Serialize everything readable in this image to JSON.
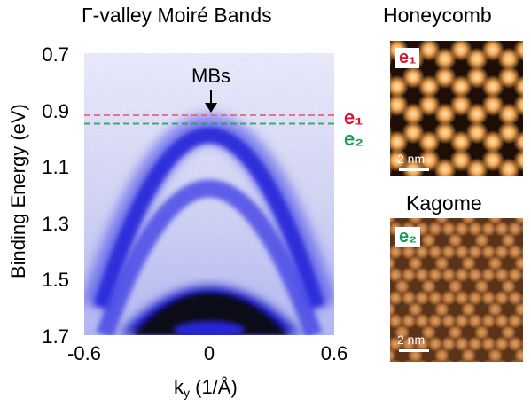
{
  "figure": {
    "title": "Γ-valley Moiré Bands",
    "honeycomb_title": "Honeycomb",
    "kagome_title": "Kagome",
    "annotation": "MBs",
    "xlabel_prefix": "k",
    "xlabel_sub": "y",
    "xlabel_suffix": " (1/Å)",
    "ylabel": "Binding Energy (eV)",
    "e1_label": "e₁",
    "e2_label": "e₂",
    "scale_label": "2 nm"
  },
  "chart_data": {
    "type": "heatmap",
    "title": "Γ-valley Moiré Bands",
    "xlabel": "ky (1/Å)",
    "ylabel": "Binding Energy (eV)",
    "xlim": [
      -0.6,
      0.6
    ],
    "ylim": [
      0.7,
      1.7
    ],
    "y_inverted": true,
    "x_ticks": [
      "-0.6",
      "0",
      "0.6"
    ],
    "y_ticks": [
      "0.7",
      "0.9",
      "1.1",
      "1.3",
      "1.5",
      "1.7"
    ],
    "x_tick_values": [
      -0.6,
      0,
      0.6
    ],
    "y_tick_values": [
      0.7,
      0.9,
      1.1,
      1.3,
      1.5,
      1.7
    ],
    "lines": [
      {
        "name": "e₁",
        "energy": 0.92,
        "color": "#e8607a",
        "style": "dashed"
      },
      {
        "name": "e₂",
        "energy": 0.95,
        "color": "#2f9a5a",
        "style": "dashed"
      }
    ],
    "bands": [
      {
        "apex_energy": 0.97,
        "edge_energy": 1.6
      },
      {
        "apex_energy": 1.18,
        "edge_energy": 1.7
      },
      {
        "apex_energy": 1.48,
        "edge_energy": 1.7
      }
    ],
    "colormap": [
      "#ffffff",
      "#0000c8",
      "#000000"
    ]
  },
  "colors": {
    "e1": "#e0102d",
    "e2": "#1a9a55",
    "band_blue": "#2222d8"
  }
}
